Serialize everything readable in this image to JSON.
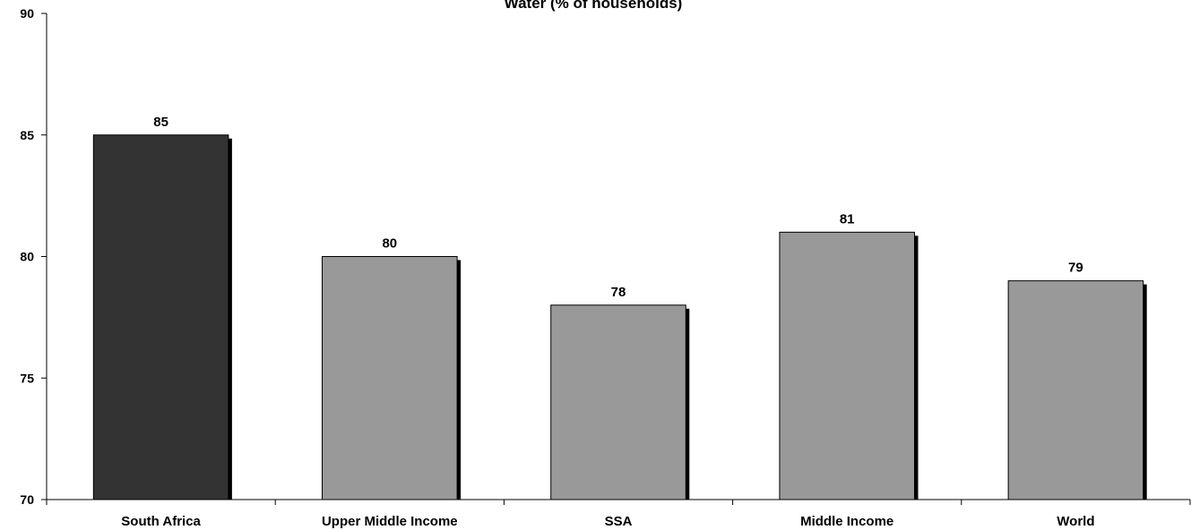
{
  "chart_data": {
    "type": "bar",
    "title": "Water   (% of households)",
    "xlabel": "",
    "ylabel": "",
    "categories": [
      "South Africa",
      "Upper Middle Income",
      "SSA",
      "Middle Income",
      "World"
    ],
    "values": [
      85,
      80,
      78,
      81,
      79
    ],
    "ylim": [
      70,
      90
    ],
    "yticks": [
      70,
      75,
      80,
      85,
      90
    ],
    "grid": false,
    "legend": "none",
    "colors": {
      "highlight": "#333333",
      "default": "#999999",
      "shadow": "#000000"
    },
    "highlight_index": 0
  }
}
